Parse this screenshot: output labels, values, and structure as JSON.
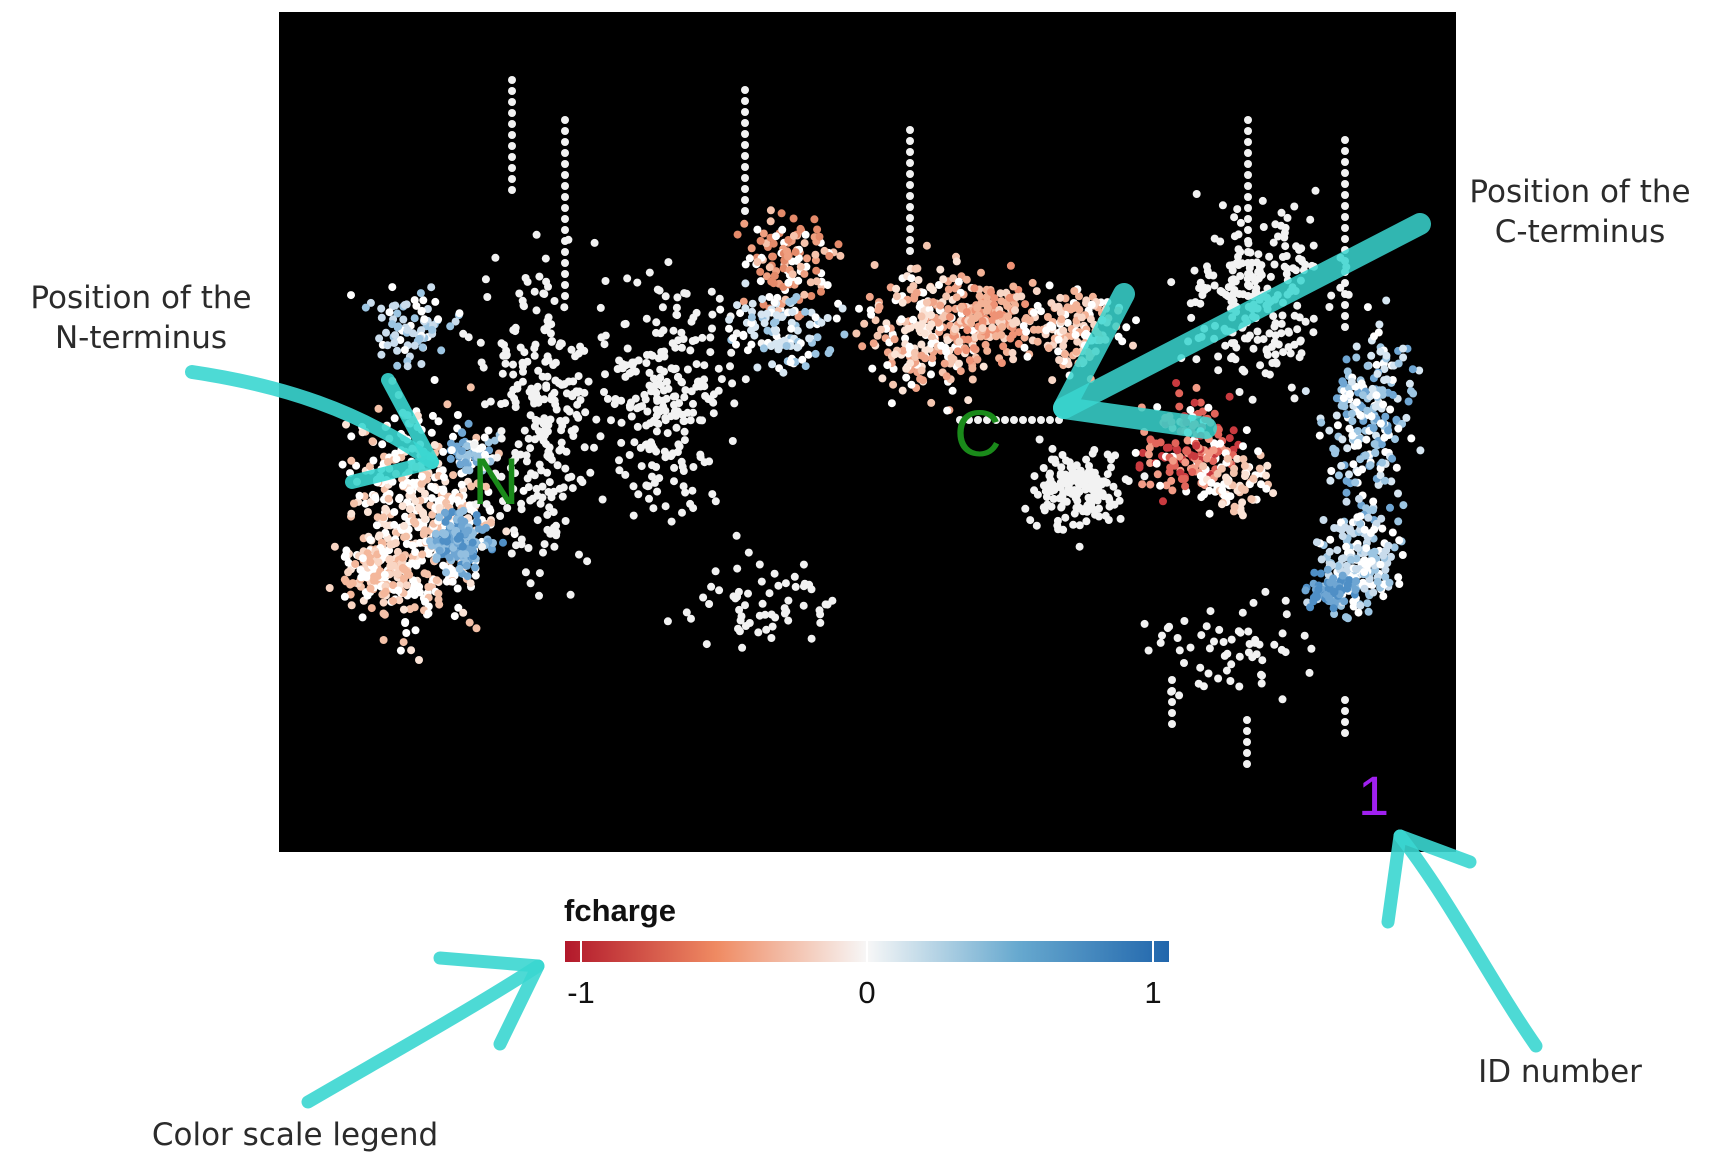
{
  "annotations": {
    "n_terminus_label": "Position of the\nN-terminus",
    "c_terminus_label": "Position of the\nC-terminus",
    "id_number_label": "ID number",
    "color_scale_label": "Color scale legend"
  },
  "plot": {
    "n_marker": "N",
    "c_marker": "C",
    "id_number": "1",
    "background_color": "#000000",
    "marker_color": "#1a8a1a",
    "id_color": "#a020f0",
    "arrow_color": "#3ad6d0"
  },
  "legend": {
    "title": "fcharge",
    "ticks": [
      "-1",
      "0",
      "1"
    ],
    "range": [
      -1,
      1
    ],
    "colors": {
      "low": "#b2182b",
      "mid": "#f7f7f7",
      "high": "#2166ac"
    }
  }
}
